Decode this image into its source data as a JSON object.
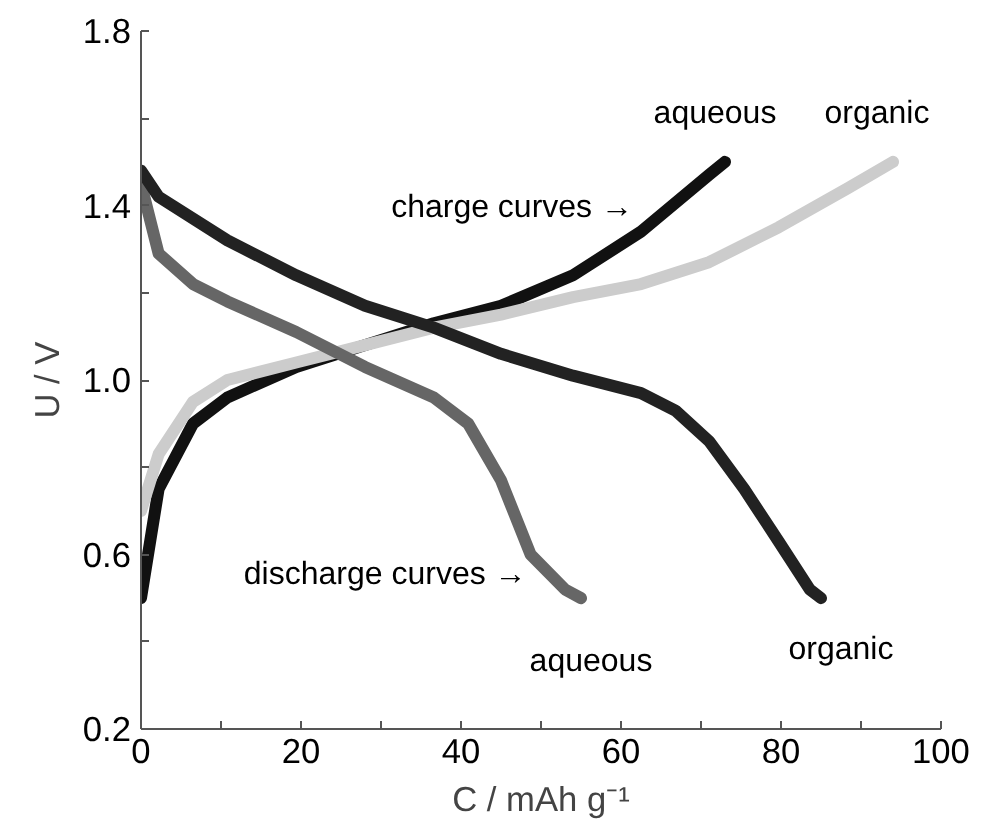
{
  "chart_data": {
    "type": "line",
    "xlabel": "C / mAh g⁻¹",
    "ylabel": "U / V",
    "xlim": [
      0,
      100
    ],
    "ylim": [
      0.2,
      1.8
    ],
    "xticks": [
      0,
      {
        "value": 10,
        "label": null
      },
      20,
      {
        "value": 30,
        "label": null
      },
      40,
      {
        "value": 50,
        "label": null
      },
      60,
      {
        "value": 70,
        "label": null
      },
      80,
      {
        "value": 90,
        "label": null
      },
      100
    ],
    "yticks": [
      {
        "value": 0.2,
        "label": "0.2"
      },
      {
        "value": 0.4,
        "label": null
      },
      {
        "value": 0.6,
        "label": "0.6"
      },
      {
        "value": 0.8,
        "label": null
      },
      {
        "value": 1.0,
        "label": "1.0"
      },
      {
        "value": 1.2,
        "label": null
      },
      {
        "value": 1.4,
        "label": "1.4"
      },
      {
        "value": 1.6,
        "label": null
      },
      {
        "value": 1.8,
        "label": "1.8"
      }
    ],
    "grid": false,
    "marker": "none",
    "line_style": "solid",
    "series": [
      {
        "color": "#111111",
        "x": [
          0,
          2.2,
          6.5,
          10.8,
          19.4,
          28,
          36.6,
          45,
          54,
          62.5,
          71,
          73
        ],
        "values": [
          0.5,
          0.75,
          0.9,
          0.96,
          1.03,
          1.08,
          1.13,
          1.17,
          1.24,
          1.34,
          1.47,
          1.5
        ]
      },
      {
        "color": "#cccccc",
        "x": [
          0,
          2.2,
          6.5,
          10.8,
          19.4,
          28,
          36.6,
          45,
          54,
          62.5,
          71,
          79.7,
          88.4,
          94
        ],
        "values": [
          0.7,
          0.83,
          0.95,
          1.0,
          1.04,
          1.08,
          1.12,
          1.15,
          1.19,
          1.22,
          1.27,
          1.35,
          1.44,
          1.5
        ]
      },
      {
        "color": "#666666",
        "x": [
          0,
          2.2,
          6.5,
          10.8,
          19.4,
          28,
          36.6,
          40.9,
          45,
          48.7,
          53,
          55
        ],
        "values": [
          1.45,
          1.29,
          1.22,
          1.18,
          1.11,
          1.03,
          0.96,
          0.9,
          0.77,
          0.6,
          0.52,
          0.5
        ]
      },
      {
        "color": "#222222",
        "x": [
          0,
          2.2,
          10.8,
          19.4,
          28,
          36.6,
          45,
          54,
          62.5,
          66.8,
          71,
          75.4,
          79.7,
          83.6,
          85
        ],
        "values": [
          1.48,
          1.42,
          1.32,
          1.24,
          1.17,
          1.12,
          1.06,
          1.01,
          0.97,
          0.93,
          0.86,
          0.75,
          0.63,
          0.52,
          0.5
        ]
      }
    ],
    "annotations": [
      {
        "text": "aqueous",
        "x": 73,
        "y": 1.5
      },
      {
        "text": "organic",
        "x": 94,
        "y": 1.5
      },
      {
        "text": "charge curves →",
        "x": 62.5,
        "y": 1.34
      },
      {
        "text": "discharge curves →",
        "x": 48.7,
        "y": 0.6
      },
      {
        "text": "aqueous",
        "x": 55,
        "y": 0.5
      },
      {
        "text": "organic",
        "x": 85,
        "y": 0.5
      }
    ]
  }
}
